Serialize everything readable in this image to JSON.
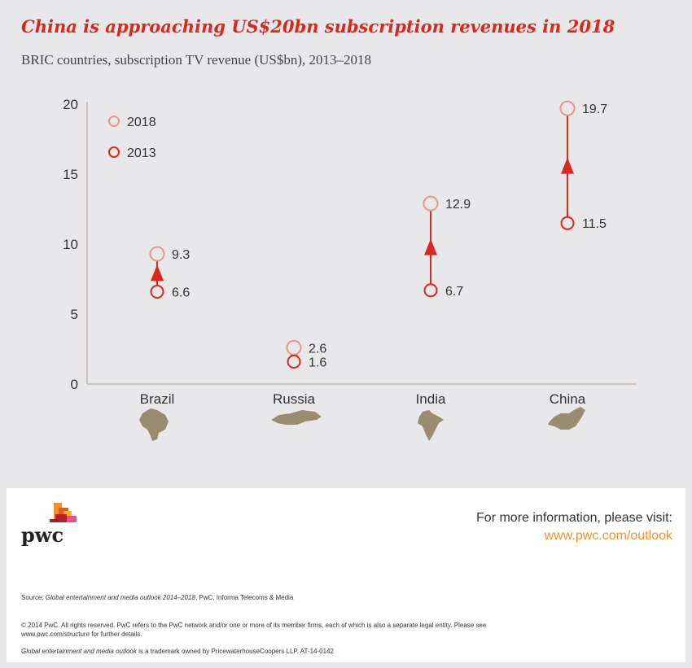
{
  "title": "China is approaching US$20bn subscription revenues in 2018",
  "subtitle": "BRIC countries, subscription TV revenue (US$bn), 2013–2018",
  "colors": {
    "accent": "#d9291c",
    "light": "#e8968a",
    "map": "#9a8c70",
    "link": "#f0932f"
  },
  "chart_data": {
    "type": "dumbbell",
    "categories": [
      "Brazil",
      "Russia",
      "India",
      "China"
    ],
    "series": [
      {
        "name": "2013",
        "values": [
          6.6,
          1.6,
          6.7,
          11.5
        ]
      },
      {
        "name": "2018",
        "values": [
          9.3,
          2.6,
          12.9,
          19.7
        ]
      }
    ],
    "value_labels": {
      "2013": [
        "6.6",
        "1.6",
        "6.7",
        "11.5"
      ],
      "2018": [
        "9.3",
        "2.6",
        "12.9",
        "19.7"
      ]
    },
    "yticks": [
      "0",
      "5",
      "10",
      "15",
      "20"
    ],
    "ylim": [
      0,
      20
    ],
    "legend": [
      "2018",
      "2013"
    ],
    "legend_position": "top-left"
  },
  "footer": {
    "logo": "pwc",
    "info": "For more information, please visit:",
    "url": "www.pwc.com/outlook",
    "source_prefix": "Source: ",
    "source_title": "Global entertainment and media outlook 2014–2018",
    "source_rest": ", PwC, Informa Telecoms & Media",
    "copyright": "© 2014 PwC. All rights reserved. PwC refers to the PwC network and/or one or more of its member firms, each of which is also a separate legal entity. Please see",
    "copyright2": "www.pwc.com/structure for further details.",
    "tm_title": "Global entertainment and media outlook",
    "tm_rest": " is a trademark owned by PricewaterhouseCoopers LLP. AT-14-0142"
  }
}
